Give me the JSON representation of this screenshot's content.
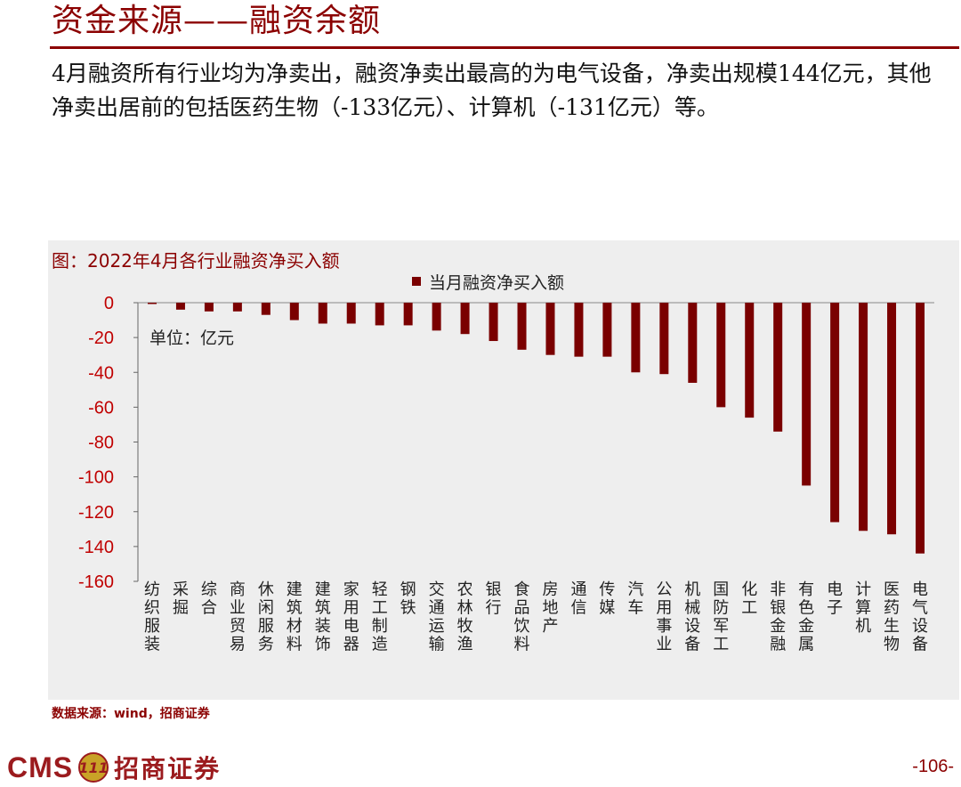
{
  "header": {
    "title": "资金来源——融资余额"
  },
  "summary": {
    "text": "4月融资所有行业均为净卖出，融资净卖出最高的为电气设备，净卖出规模144亿元，其他净卖出居前的包括医药生物（-133亿元）、计算机（-131亿元）等。"
  },
  "chart_caption": "图：2022年4月各行业融资净买入额",
  "source": "数据来源：wind，招商证券",
  "footer": {
    "logo_text": "CMS",
    "logo_badge": "111",
    "logo_cn": "招商证券",
    "page_number": "-106-"
  },
  "colors": {
    "accent": "#8B0000",
    "bar": "#7A0000",
    "panel_bg": "#EEEEEE"
  },
  "chart_data": {
    "type": "bar",
    "legend": "当月融资净买入额",
    "legend_position": "top-center",
    "unit_note": "单位：亿元",
    "grid": false,
    "ylim": [
      -160,
      0
    ],
    "yticks": [
      0,
      -20,
      -40,
      -60,
      -80,
      -100,
      -120,
      -140,
      -160
    ],
    "categories": [
      "纺织服装",
      "采掘",
      "综合",
      "商业贸易",
      "休闲服务",
      "建筑材料",
      "建筑装饰",
      "家用电器",
      "轻工制造",
      "钢铁",
      "交通运输",
      "农林牧渔",
      "银行",
      "食品饮料",
      "房地产",
      "通信",
      "传媒",
      "汽车",
      "公用事业",
      "机械设备",
      "国防军工",
      "化工",
      "非银金融",
      "有色金属",
      "电子",
      "计算机",
      "医药生物",
      "电气设备"
    ],
    "series": [
      {
        "name": "当月融资净买入额",
        "values": [
          -0.5,
          -4,
          -5,
          -5,
          -7,
          -10,
          -12,
          -12,
          -13,
          -13,
          -16,
          -18,
          -22,
          -27,
          -30,
          -31,
          -31,
          -40,
          -41,
          -46,
          -60,
          -66,
          -74,
          -105,
          -126,
          -131,
          -133,
          -144
        ]
      }
    ]
  }
}
